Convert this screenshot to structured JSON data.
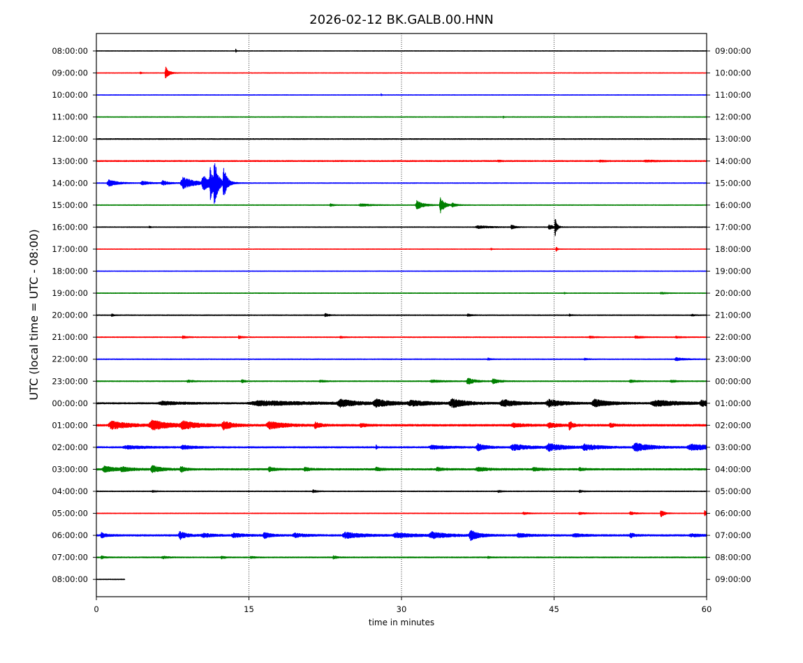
{
  "chart_data": {
    "type": "line",
    "title": "2026-02-12 BK.GALB.00.HNN",
    "xlabel": "time in minutes",
    "ylabel": "UTC (local time = UTC - 08:00)",
    "xlim": [
      0,
      60
    ],
    "x_ticks": [
      0,
      15,
      30,
      45,
      60
    ],
    "grid": "vertical dotted at 15, 30, 45",
    "left_ticks": [
      "08:00:00",
      "09:00:00",
      "10:00:00",
      "11:00:00",
      "12:00:00",
      "13:00:00",
      "14:00:00",
      "15:00:00",
      "16:00:00",
      "17:00:00",
      "18:00:00",
      "19:00:00",
      "20:00:00",
      "21:00:00",
      "22:00:00",
      "23:00:00",
      "00:00:00",
      "01:00:00",
      "02:00:00",
      "03:00:00",
      "04:00:00",
      "05:00:00",
      "06:00:00",
      "07:00:00",
      "08:00:00"
    ],
    "right_ticks": [
      "09:00:00",
      "10:00:00",
      "11:00:00",
      "12:00:00",
      "13:00:00",
      "14:00:00",
      "15:00:00",
      "16:00:00",
      "17:00:00",
      "18:00:00",
      "19:00:00",
      "20:00:00",
      "21:00:00",
      "22:00:00",
      "23:00:00",
      "00:00:00",
      "01:00:00",
      "02:00:00",
      "03:00:00",
      "04:00:00",
      "05:00:00",
      "06:00:00",
      "07:00:00",
      "08:00:00",
      "09:00:00"
    ],
    "trace_colors": [
      "#000000",
      "#ff0000",
      "#0000ff",
      "#008000"
    ],
    "traces": [
      {
        "row": 0,
        "noise": 0.25,
        "end": 60,
        "events": [
          {
            "t": 13.7,
            "a": 2.0,
            "w": 0.05
          }
        ]
      },
      {
        "row": 1,
        "noise": 0.25,
        "end": 60,
        "events": [
          {
            "t": 6.8,
            "a": 5.5,
            "w": 0.3
          },
          {
            "t": 4.3,
            "a": 0.8,
            "w": 0.15
          }
        ]
      },
      {
        "row": 2,
        "noise": 0.25,
        "end": 60,
        "events": [
          {
            "t": 28.0,
            "a": 1.2,
            "w": 0.05
          }
        ]
      },
      {
        "row": 3,
        "noise": 0.3,
        "end": 60,
        "events": [
          {
            "t": 40.0,
            "a": 1.3,
            "w": 0.05
          }
        ]
      },
      {
        "row": 4,
        "noise": 0.4,
        "end": 60,
        "events": []
      },
      {
        "row": 5,
        "noise": 0.5,
        "end": 60,
        "events": [
          {
            "t": 39.5,
            "a": 0.6,
            "w": 0.3
          },
          {
            "t": 49.5,
            "a": 0.6,
            "w": 0.5
          },
          {
            "t": 54.0,
            "a": 0.6,
            "w": 1.0
          }
        ]
      },
      {
        "row": 6,
        "noise": 0.3,
        "end": 60,
        "events": [
          {
            "t": 1.2,
            "a": 3.0,
            "w": 0.8
          },
          {
            "t": 4.5,
            "a": 1.5,
            "w": 0.8
          },
          {
            "t": 6.5,
            "a": 2.0,
            "w": 0.6
          },
          {
            "t": 8.5,
            "a": 5.0,
            "w": 1.2
          },
          {
            "t": 10.5,
            "a": 6.0,
            "w": 0.8
          },
          {
            "t": 11.2,
            "a": 12.0,
            "w": 0.35
          },
          {
            "t": 11.6,
            "a": 18.0,
            "w": 0.3
          },
          {
            "t": 12.5,
            "a": 14.0,
            "w": 0.3
          }
        ]
      },
      {
        "row": 7,
        "noise": 0.3,
        "end": 60,
        "events": [
          {
            "t": 23.0,
            "a": 1.2,
            "w": 0.3
          },
          {
            "t": 26.0,
            "a": 1.0,
            "w": 1.0
          },
          {
            "t": 31.5,
            "a": 4.0,
            "w": 0.6
          },
          {
            "t": 33.8,
            "a": 8.0,
            "w": 0.35
          },
          {
            "t": 35.0,
            "a": 1.5,
            "w": 0.4
          }
        ]
      },
      {
        "row": 8,
        "noise": 0.3,
        "end": 60,
        "events": [
          {
            "t": 5.2,
            "a": 1.0,
            "w": 0.1
          },
          {
            "t": 37.5,
            "a": 1.2,
            "w": 1.2
          },
          {
            "t": 40.8,
            "a": 2.0,
            "w": 0.3
          },
          {
            "t": 44.5,
            "a": 2.5,
            "w": 0.4
          },
          {
            "t": 45.1,
            "a": 10.0,
            "w": 0.15
          }
        ]
      },
      {
        "row": 9,
        "noise": 0.25,
        "end": 60,
        "events": [
          {
            "t": 38.8,
            "a": 0.8,
            "w": 0.1
          },
          {
            "t": 45.2,
            "a": 2.5,
            "w": 0.1
          }
        ]
      },
      {
        "row": 10,
        "noise": 0.25,
        "end": 60,
        "events": []
      },
      {
        "row": 11,
        "noise": 0.3,
        "end": 60,
        "events": [
          {
            "t": 55.5,
            "a": 0.8,
            "w": 0.4
          },
          {
            "t": 46.0,
            "a": 0.6,
            "w": 0.1
          }
        ]
      },
      {
        "row": 12,
        "noise": 0.35,
        "end": 60,
        "events": [
          {
            "t": 1.5,
            "a": 1.0,
            "w": 0.2
          },
          {
            "t": 22.5,
            "a": 1.5,
            "w": 0.3
          },
          {
            "t": 36.5,
            "a": 1.0,
            "w": 0.3
          },
          {
            "t": 46.5,
            "a": 0.8,
            "w": 0.2
          },
          {
            "t": 58.5,
            "a": 0.8,
            "w": 0.3
          }
        ]
      },
      {
        "row": 13,
        "noise": 0.35,
        "end": 60,
        "events": [
          {
            "t": 8.5,
            "a": 1.0,
            "w": 0.4
          },
          {
            "t": 14.0,
            "a": 1.2,
            "w": 0.3
          },
          {
            "t": 24.0,
            "a": 0.6,
            "w": 0.4
          },
          {
            "t": 48.5,
            "a": 0.7,
            "w": 0.5
          },
          {
            "t": 53.0,
            "a": 1.0,
            "w": 0.6
          },
          {
            "t": 57.0,
            "a": 0.8,
            "w": 0.5
          }
        ]
      },
      {
        "row": 14,
        "noise": 0.35,
        "end": 60,
        "events": [
          {
            "t": 38.5,
            "a": 0.8,
            "w": 0.3
          },
          {
            "t": 48.0,
            "a": 0.6,
            "w": 0.4
          },
          {
            "t": 57.0,
            "a": 1.2,
            "w": 0.8
          }
        ]
      },
      {
        "row": 15,
        "noise": 0.4,
        "end": 60,
        "events": [
          {
            "t": 9.0,
            "a": 1.0,
            "w": 0.5
          },
          {
            "t": 14.3,
            "a": 1.3,
            "w": 0.3
          },
          {
            "t": 22.0,
            "a": 0.8,
            "w": 0.5
          },
          {
            "t": 33.0,
            "a": 1.0,
            "w": 1.0
          },
          {
            "t": 36.5,
            "a": 3.0,
            "w": 0.6
          },
          {
            "t": 39.0,
            "a": 2.0,
            "w": 0.6
          },
          {
            "t": 52.5,
            "a": 1.0,
            "w": 0.6
          },
          {
            "t": 56.5,
            "a": 1.0,
            "w": 0.5
          }
        ]
      },
      {
        "row": 16,
        "noise": 0.6,
        "end": 60,
        "events": [
          {
            "t": 6.5,
            "a": 1.5,
            "w": 2.0
          },
          {
            "t": 16.0,
            "a": 2.0,
            "w": 5.0
          },
          {
            "t": 24.0,
            "a": 3.0,
            "w": 1.5
          },
          {
            "t": 27.5,
            "a": 3.0,
            "w": 1.5
          },
          {
            "t": 31.0,
            "a": 2.0,
            "w": 2.0
          },
          {
            "t": 35.0,
            "a": 3.5,
            "w": 1.5
          },
          {
            "t": 40.0,
            "a": 3.0,
            "w": 1.5
          },
          {
            "t": 44.5,
            "a": 3.0,
            "w": 1.5
          },
          {
            "t": 49.0,
            "a": 3.0,
            "w": 1.5
          },
          {
            "t": 55.0,
            "a": 2.5,
            "w": 2.5
          },
          {
            "t": 59.5,
            "a": 2.5,
            "w": 0.8
          }
        ]
      },
      {
        "row": 17,
        "noise": 0.8,
        "end": 60,
        "events": [
          {
            "t": 1.5,
            "a": 3.5,
            "w": 1.5
          },
          {
            "t": 5.5,
            "a": 4.0,
            "w": 1.5
          },
          {
            "t": 8.5,
            "a": 3.0,
            "w": 1.5
          },
          {
            "t": 12.5,
            "a": 3.5,
            "w": 0.8
          },
          {
            "t": 17.0,
            "a": 3.0,
            "w": 1.5
          },
          {
            "t": 21.5,
            "a": 2.5,
            "w": 0.5
          },
          {
            "t": 26.0,
            "a": 1.5,
            "w": 0.5
          },
          {
            "t": 41.0,
            "a": 1.5,
            "w": 1.0
          },
          {
            "t": 44.5,
            "a": 2.0,
            "w": 0.8
          },
          {
            "t": 46.5,
            "a": 4.0,
            "w": 0.3
          },
          {
            "t": 50.5,
            "a": 1.5,
            "w": 0.5
          }
        ]
      },
      {
        "row": 18,
        "noise": 0.6,
        "end": 60,
        "events": [
          {
            "t": 3.0,
            "a": 1.2,
            "w": 2.0
          },
          {
            "t": 8.5,
            "a": 1.5,
            "w": 1.0
          },
          {
            "t": 27.5,
            "a": 2.0,
            "w": 0.1
          },
          {
            "t": 33.0,
            "a": 1.5,
            "w": 1.5
          },
          {
            "t": 37.5,
            "a": 3.0,
            "w": 0.8
          },
          {
            "t": 41.0,
            "a": 2.5,
            "w": 1.5
          },
          {
            "t": 44.5,
            "a": 3.0,
            "w": 1.5
          },
          {
            "t": 48.0,
            "a": 2.5,
            "w": 1.5
          },
          {
            "t": 53.0,
            "a": 3.5,
            "w": 1.5
          },
          {
            "t": 58.5,
            "a": 2.5,
            "w": 2.0
          }
        ]
      },
      {
        "row": 19,
        "noise": 0.7,
        "end": 60,
        "events": [
          {
            "t": 0.8,
            "a": 2.5,
            "w": 1.0
          },
          {
            "t": 2.5,
            "a": 1.5,
            "w": 1.0
          },
          {
            "t": 5.5,
            "a": 3.0,
            "w": 0.8
          },
          {
            "t": 8.3,
            "a": 2.5,
            "w": 0.4
          },
          {
            "t": 17.0,
            "a": 1.8,
            "w": 0.5
          },
          {
            "t": 20.5,
            "a": 1.5,
            "w": 0.5
          },
          {
            "t": 27.5,
            "a": 1.5,
            "w": 0.5
          },
          {
            "t": 33.5,
            "a": 1.5,
            "w": 0.5
          },
          {
            "t": 37.5,
            "a": 1.5,
            "w": 1.0
          },
          {
            "t": 43.0,
            "a": 1.2,
            "w": 0.8
          },
          {
            "t": 47.5,
            "a": 1.0,
            "w": 0.5
          }
        ]
      },
      {
        "row": 20,
        "noise": 0.35,
        "end": 60,
        "events": [
          {
            "t": 5.5,
            "a": 0.7,
            "w": 0.3
          },
          {
            "t": 21.3,
            "a": 1.2,
            "w": 0.3
          },
          {
            "t": 39.5,
            "a": 0.8,
            "w": 0.3
          },
          {
            "t": 47.5,
            "a": 1.0,
            "w": 0.3
          }
        ]
      },
      {
        "row": 21,
        "noise": 0.3,
        "end": 60,
        "events": [
          {
            "t": 42.0,
            "a": 1.0,
            "w": 0.5
          },
          {
            "t": 47.5,
            "a": 1.0,
            "w": 0.5
          },
          {
            "t": 52.5,
            "a": 1.2,
            "w": 0.5
          },
          {
            "t": 55.5,
            "a": 3.5,
            "w": 0.3
          },
          {
            "t": 59.8,
            "a": 2.5,
            "w": 0.2
          }
        ]
      },
      {
        "row": 22,
        "noise": 0.7,
        "end": 60,
        "events": [
          {
            "t": 0.5,
            "a": 2.0,
            "w": 0.5
          },
          {
            "t": 8.2,
            "a": 3.5,
            "w": 0.6
          },
          {
            "t": 10.5,
            "a": 1.5,
            "w": 1.0
          },
          {
            "t": 13.5,
            "a": 1.5,
            "w": 1.0
          },
          {
            "t": 16.5,
            "a": 2.5,
            "w": 0.6
          },
          {
            "t": 19.5,
            "a": 1.5,
            "w": 1.0
          },
          {
            "t": 24.5,
            "a": 2.5,
            "w": 1.5
          },
          {
            "t": 29.5,
            "a": 2.0,
            "w": 1.5
          },
          {
            "t": 33.0,
            "a": 2.5,
            "w": 1.5
          },
          {
            "t": 36.8,
            "a": 4.0,
            "w": 0.8
          },
          {
            "t": 41.5,
            "a": 1.5,
            "w": 1.0
          },
          {
            "t": 47.0,
            "a": 1.2,
            "w": 1.0
          },
          {
            "t": 52.5,
            "a": 2.0,
            "w": 0.4
          },
          {
            "t": 58.5,
            "a": 1.0,
            "w": 1.0
          }
        ]
      },
      {
        "row": 23,
        "noise": 0.45,
        "end": 60,
        "events": [
          {
            "t": 0.5,
            "a": 1.2,
            "w": 0.3
          },
          {
            "t": 6.5,
            "a": 1.2,
            "w": 0.4
          },
          {
            "t": 12.3,
            "a": 1.3,
            "w": 0.3
          },
          {
            "t": 15.2,
            "a": 1.0,
            "w": 0.3
          },
          {
            "t": 23.3,
            "a": 1.3,
            "w": 0.3
          },
          {
            "t": 38.5,
            "a": 0.6,
            "w": 0.3
          }
        ]
      },
      {
        "row": 24,
        "noise": 0.3,
        "end": 2.8,
        "events": []
      }
    ]
  }
}
